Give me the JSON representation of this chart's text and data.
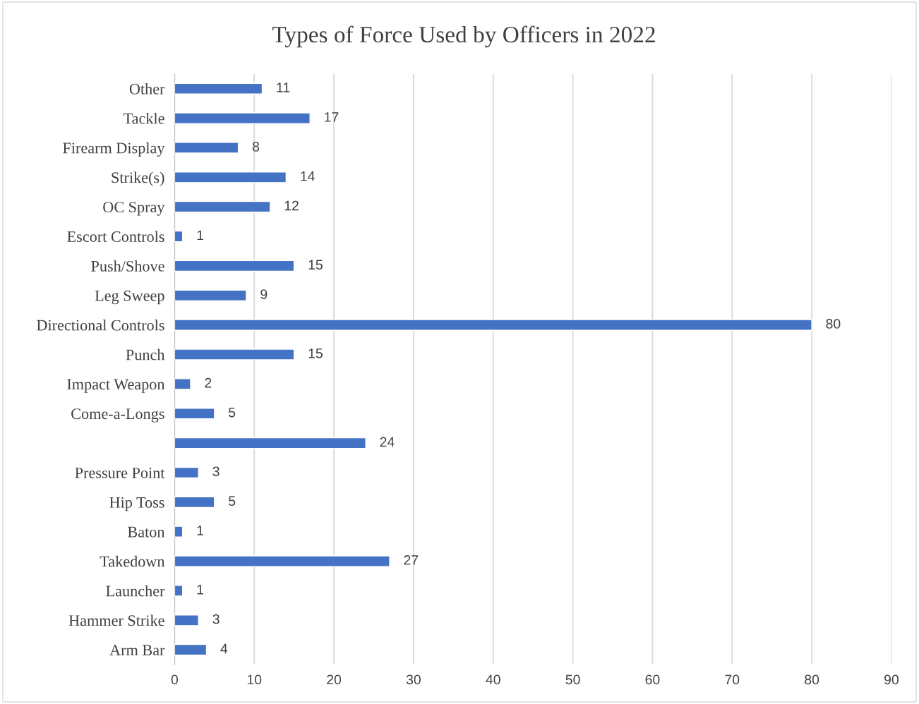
{
  "chart_data": {
    "type": "bar",
    "orientation": "horizontal",
    "title": "Types of Force Used by Officers in 2022",
    "categories": [
      "Other",
      "Tackle",
      "Firearm Display",
      "Strike(s)",
      "OC Spray",
      "Escort Controls",
      "Push/Shove",
      "Leg Sweep",
      "Directional Controls",
      "Punch",
      "Impact Weapon",
      "Come-a-Longs",
      null,
      "Pressure Point",
      "Hip Toss",
      "Baton",
      "Takedown",
      "Launcher",
      "Hammer Strike",
      "Arm Bar"
    ],
    "values": [
      11,
      17,
      8,
      14,
      12,
      1,
      15,
      9,
      80,
      15,
      2,
      5,
      24,
      3,
      5,
      1,
      27,
      1,
      3,
      4
    ],
    "color": "#4472c4",
    "xlim": [
      0,
      90
    ],
    "xticks": [
      0,
      10,
      20,
      30,
      40,
      50,
      60,
      70,
      80,
      90
    ],
    "grid": "x",
    "data_labels": true
  }
}
